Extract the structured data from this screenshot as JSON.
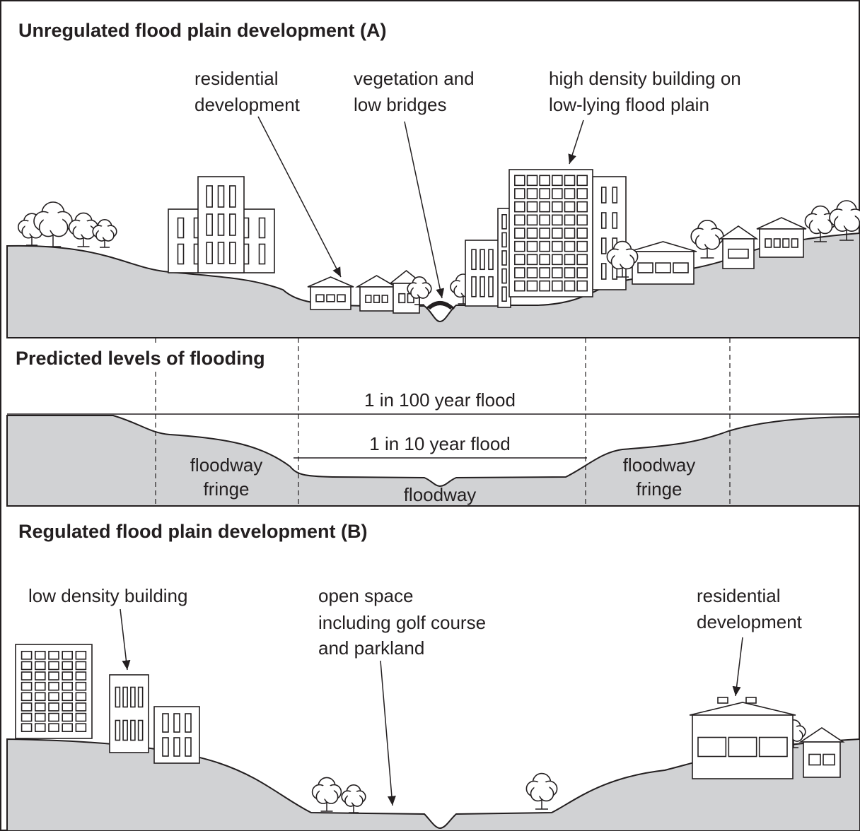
{
  "panel_a": {
    "title": "Unregulated flood plain development (A)",
    "labels": [
      {
        "lines": [
          "residential",
          "development"
        ]
      },
      {
        "lines": [
          "vegetation and",
          "low bridges"
        ]
      },
      {
        "lines": [
          "high density building on",
          "low-lying flood plain"
        ]
      }
    ]
  },
  "panel_levels": {
    "title": "Predicted levels of flooding",
    "flood_100": "1 in 100 year flood",
    "flood_10": "1 in 10 year flood",
    "fringe_left": [
      "floodway",
      "fringe"
    ],
    "floodway": "floodway",
    "fringe_right": [
      "floodway",
      "fringe"
    ]
  },
  "panel_b": {
    "title": "Regulated flood plain development (B)",
    "labels": [
      {
        "lines": [
          "low density building"
        ]
      },
      {
        "lines": [
          "open space",
          "including golf course",
          "and parkland"
        ]
      },
      {
        "lines": [
          "residential",
          "development"
        ]
      }
    ]
  }
}
